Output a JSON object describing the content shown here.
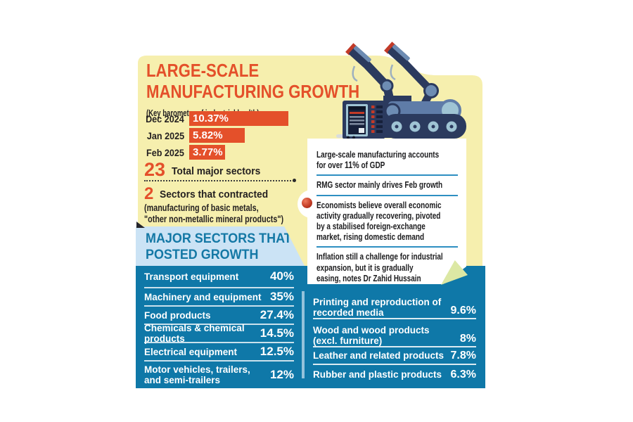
{
  "colors": {
    "accent_orange": "#e4502a",
    "card_yellow": "#f6efae",
    "panel_blue": "#0f78a8",
    "header_light_blue": "#cbe3f5",
    "heading_teal": "#1478a5",
    "note_divider_blue": "#2e8fc2",
    "text_dark": "#231f20",
    "fold_green": "#dce8a4"
  },
  "header": {
    "title_line1": "LARGE-SCALE",
    "title_line2": "MANUFACTURING GROWTH",
    "subtitle": "(Key barometer of industrial health)"
  },
  "chart_data": [
    {
      "type": "bar",
      "orientation": "horizontal",
      "title": "LARGE-SCALE MANUFACTURING GROWTH",
      "subtitle": "(Key barometer of industrial health)",
      "categories": [
        "Dec 2024",
        "Jan 2025",
        "Feb 2025"
      ],
      "values": [
        10.37,
        5.82,
        3.77
      ],
      "value_labels": [
        "10.37%",
        "5.82%",
        "3.77%"
      ],
      "unit": "%",
      "bar_color": "#e4502a",
      "xlim": [
        0,
        10.5
      ]
    },
    {
      "type": "table",
      "title": "MAJOR SECTORS THAT POSTED GROWTH",
      "columns": [
        "Sector",
        "Growth"
      ],
      "rows": [
        [
          "Transport equipment",
          "40%"
        ],
        [
          "Machinery and equipment",
          "35%"
        ],
        [
          "Food products",
          "27.4%"
        ],
        [
          "Chemicals & chemical products",
          "14.5%"
        ],
        [
          "Electrical equipment",
          "12.5%"
        ],
        [
          "Motor vehicles, trailers, and semi-trailers",
          "12%"
        ],
        [
          "Printing and reproduction of recorded media",
          "9.6%"
        ],
        [
          "Wood and wood products (excl. furniture)",
          "8%"
        ],
        [
          "Leather and related products",
          "7.8%"
        ],
        [
          "Rubber and plastic products",
          "6.3%"
        ]
      ]
    }
  ],
  "stats": {
    "total_value": "23",
    "total_label": "Total major sectors",
    "contracted_value": "2",
    "contracted_label": "Sectors that contracted",
    "contracted_note_line1": "(manufacturing of basic metals,",
    "contracted_note_line2": "\"other non-metallic mineral products\")"
  },
  "growth_section": {
    "heading_line1": "MAJOR SECTORS THAT",
    "heading_line2": "POSTED GROWTH",
    "left_rows": [
      {
        "lines": [
          "Transport equipment"
        ],
        "value": "40%"
      },
      {
        "lines": [
          "Machinery and equipment"
        ],
        "value": "35%"
      },
      {
        "lines": [
          "Food products"
        ],
        "value": "27.4%"
      },
      {
        "lines": [
          "Chemicals & chemical products"
        ],
        "value": "14.5%"
      },
      {
        "lines": [
          "Electrical equipment"
        ],
        "value": "12.5%"
      },
      {
        "lines": [
          "Motor vehicles, trailers,",
          "and semi-trailers"
        ],
        "value": "12%"
      }
    ],
    "right_rows": [
      {
        "lines": [
          "Printing and reproduction of",
          "recorded media"
        ],
        "value": "9.6%"
      },
      {
        "lines": [
          "Wood and wood products",
          "(excl. furniture)"
        ],
        "value": "8%"
      },
      {
        "lines": [
          "Leather and related products"
        ],
        "value": "7.8%"
      },
      {
        "lines": [
          "Rubber and plastic products"
        ],
        "value": "6.3%"
      }
    ]
  },
  "notes": [
    {
      "line1": "Large-scale manufacturing accounts",
      "line2_pre": "for over ",
      "line2_bold": "11%",
      "line2_post": " of GDP"
    },
    {
      "line1": "RMG sector mainly drives Feb growth"
    },
    {
      "line1": "Economists believe overall economic",
      "line2": "activity gradually recovering, pivoted",
      "line3": "by a stabilised foreign-exchange",
      "line4": "market, rising domestic demand"
    },
    {
      "line1": "Inflation still a challenge for industrial",
      "line2": "expansion, but it is gradually",
      "line3": "easing, notes Dr Zahid Hussain"
    }
  ],
  "icons": {
    "illustration": "robot-arms-machine-icon",
    "bullet": "red-ball-icon",
    "fold": "folded-corner"
  }
}
